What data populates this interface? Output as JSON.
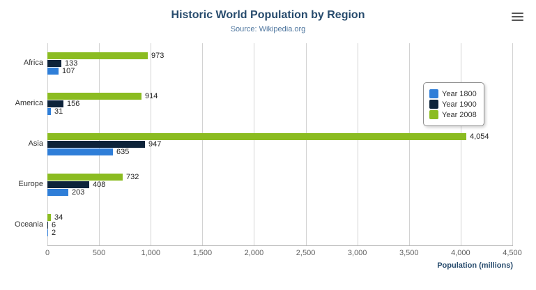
{
  "header": {
    "title": "Historic World Population by Region",
    "subtitle": "Source: Wikipedia.org"
  },
  "icons": {
    "export_menu": "hamburger-menu-icon"
  },
  "chart_data": {
    "type": "bar",
    "orientation": "horizontal",
    "title": "Historic World Population by Region",
    "subtitle": "Source: Wikipedia.org",
    "categories": [
      "Africa",
      "America",
      "Asia",
      "Europe",
      "Oceania"
    ],
    "series": [
      {
        "name": "Year 1800",
        "color": "#2f7ed8",
        "values": [
          107,
          31,
          635,
          203,
          2
        ]
      },
      {
        "name": "Year 1900",
        "color": "#0d233a",
        "values": [
          133,
          156,
          947,
          408,
          6
        ]
      },
      {
        "name": "Year 2008",
        "color": "#8bbc21",
        "values": [
          973,
          914,
          4054,
          732,
          34
        ]
      }
    ],
    "display_order": [
      "Year 2008",
      "Year 1900",
      "Year 1800"
    ],
    "xlabel": "Population (millions)",
    "ylabel": "",
    "xlim": [
      0,
      4500
    ],
    "tick_step": 500,
    "tick_labels": [
      "0",
      "500",
      "1,000",
      "1,500",
      "2,000",
      "2,500",
      "3,000",
      "3,500",
      "4,000",
      "4,500"
    ],
    "grid": true,
    "legend_position": "right",
    "data_labels": true
  }
}
